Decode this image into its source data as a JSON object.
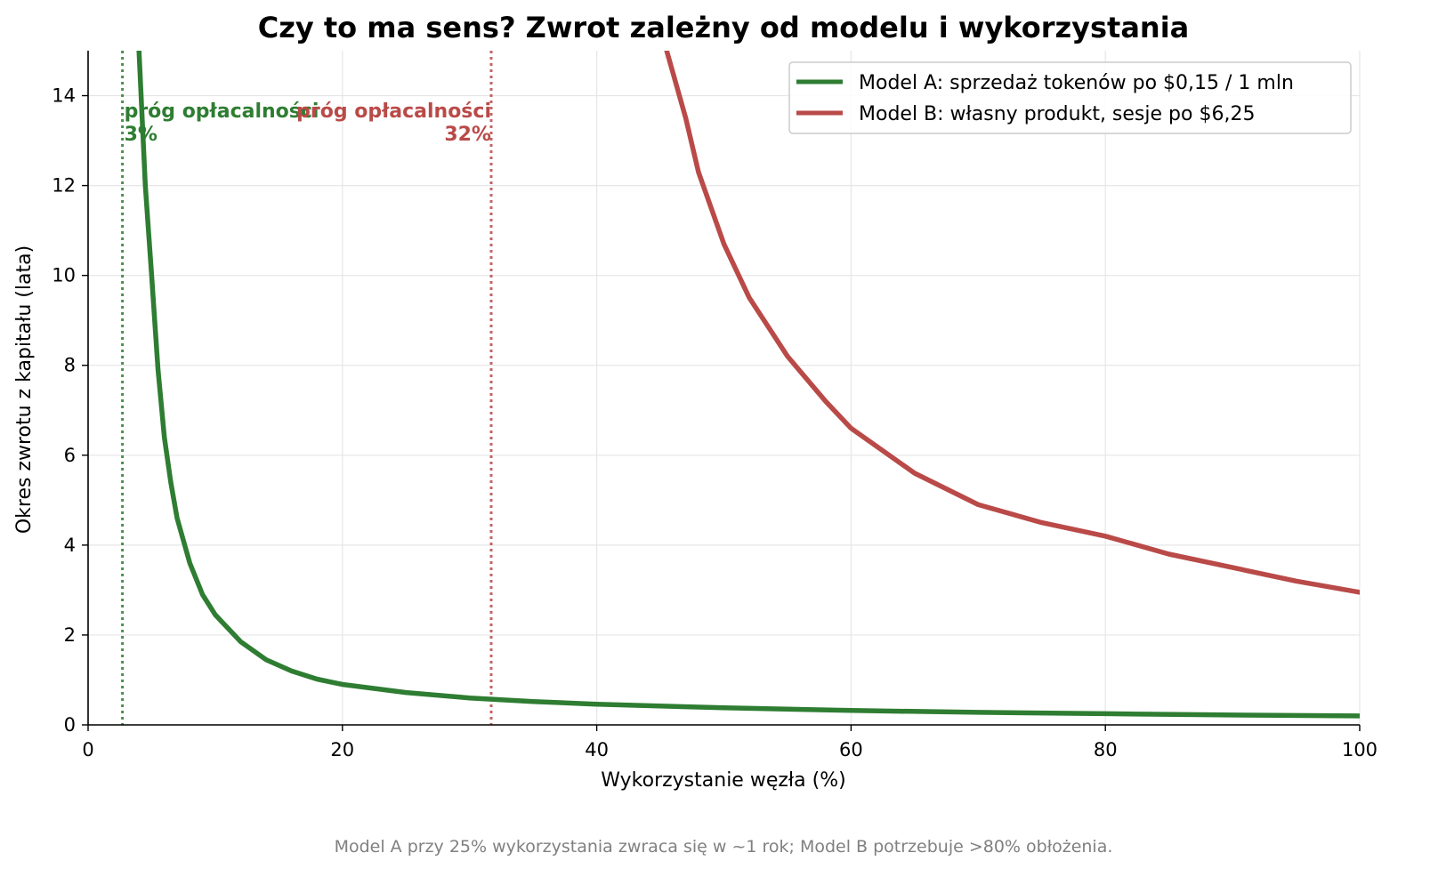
{
  "chart_data": {
    "type": "line",
    "title": "Czy to ma sens? Zwrot zależny od modelu i wykorzystania",
    "xlabel": "Wykorzystanie węzła (%)",
    "ylabel": "Okres zwrotu z kapitału (lata)",
    "xlim": [
      0,
      100
    ],
    "ylim": [
      0,
      15
    ],
    "xticks": [
      0,
      20,
      40,
      60,
      80,
      100
    ],
    "yticks": [
      0,
      2,
      4,
      6,
      8,
      10,
      12,
      14
    ],
    "grid": true,
    "legend_position": "upper right",
    "caption": "Model A przy 25% wykorzystania zwraca się w ~1 rok; Model B potrzebuje >80% obłożenia.",
    "series": [
      {
        "name": "Model A: sprzedaż tokenów po $0,15 / 1 mln",
        "color": "#2e7d32",
        "x": [
          4,
          4.5,
          5,
          5.5,
          6,
          6.5,
          7,
          8,
          9,
          10,
          12,
          14,
          16,
          18,
          20,
          25,
          30,
          35,
          40,
          50,
          60,
          70,
          80,
          90,
          100
        ],
        "y": [
          15.0,
          12.0,
          10.0,
          7.9,
          6.4,
          5.4,
          4.6,
          3.6,
          2.9,
          2.45,
          1.85,
          1.45,
          1.2,
          1.02,
          0.9,
          0.72,
          0.6,
          0.52,
          0.46,
          0.38,
          0.32,
          0.28,
          0.25,
          0.22,
          0.2
        ]
      },
      {
        "name": "Model B: własny produkt, sesje po $6,25",
        "color": "#b94a48",
        "x": [
          45.5,
          47,
          48,
          50,
          52,
          55,
          58,
          60,
          65,
          70,
          75,
          80,
          85,
          90,
          95,
          100
        ],
        "y": [
          15.0,
          13.5,
          12.3,
          10.7,
          9.5,
          8.2,
          7.2,
          6.6,
          5.6,
          4.9,
          4.5,
          4.2,
          3.8,
          3.5,
          3.2,
          2.95
        ]
      }
    ],
    "thresholds": [
      {
        "x": 2.7,
        "label": "próg opłacalności",
        "value_label": "3%",
        "color": "#2e7d32",
        "align": "start"
      },
      {
        "x": 31.7,
        "label": "próg opłacalności",
        "value_label": "32%",
        "color": "#b94a48",
        "align": "end"
      }
    ]
  }
}
